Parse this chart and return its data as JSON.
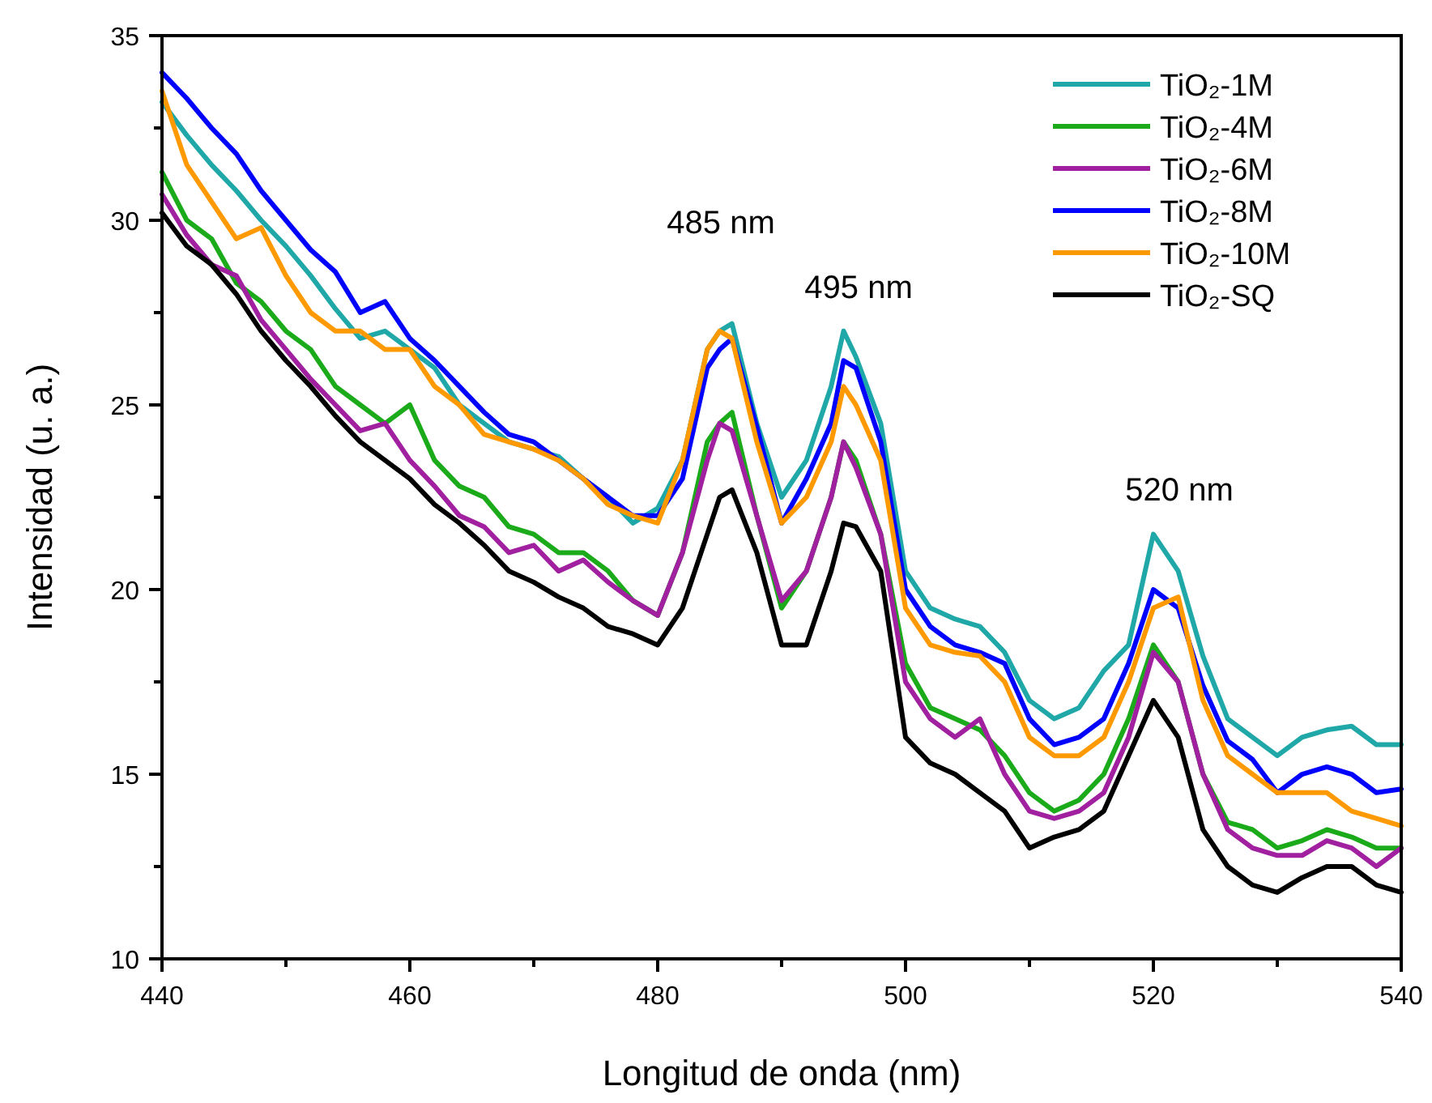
{
  "chart_data": {
    "type": "line",
    "xlabel": "Longitud de onda (nm)",
    "ylabel": "Intensidad (u. a.)",
    "x": [
      440,
      442,
      444,
      446,
      448,
      450,
      452,
      454,
      456,
      458,
      460,
      462,
      464,
      466,
      468,
      470,
      472,
      474,
      476,
      478,
      480,
      482,
      484,
      485,
      486,
      488,
      490,
      492,
      494,
      495,
      496,
      498,
      500,
      502,
      504,
      506,
      508,
      510,
      512,
      514,
      516,
      518,
      520,
      522,
      524,
      526,
      528,
      530,
      532,
      534,
      536,
      538,
      540
    ],
    "xlim": [
      440,
      540
    ],
    "ylim": [
      10,
      35
    ],
    "xticks": [
      440,
      {
        "value": 450,
        "label": null
      },
      460,
      {
        "value": 470,
        "label": null
      },
      480,
      {
        "value": 490,
        "label": null
      },
      500,
      {
        "value": 510,
        "label": null
      },
      520,
      {
        "value": 530,
        "label": null
      },
      540
    ],
    "yticks": [
      10,
      {
        "value": 12.5,
        "label": null
      },
      15,
      {
        "value": 17.5,
        "label": null
      },
      20,
      {
        "value": 22.5,
        "label": null
      },
      25,
      {
        "value": 27.5,
        "label": null
      },
      30,
      {
        "value": 32.5,
        "label": null
      },
      35
    ],
    "grid": false,
    "legend": "top right",
    "marker": "none",
    "line_style": "solid",
    "annotations": [
      "485 nm",
      "495 nm",
      "520 nm"
    ],
    "series": [
      {
        "name": "TiO₂-1M",
        "color": "#20a8a8",
        "values": [
          33.2,
          32.3,
          31.5,
          30.8,
          30.0,
          29.3,
          28.5,
          27.6,
          26.8,
          27.0,
          26.5,
          26.0,
          25.0,
          24.5,
          24.0,
          23.8,
          23.6,
          23.0,
          22.5,
          21.8,
          22.2,
          23.5,
          26.5,
          27.0,
          27.2,
          24.5,
          22.5,
          23.5,
          25.5,
          27.0,
          26.3,
          24.5,
          20.5,
          19.5,
          19.2,
          19.0,
          18.3,
          17.0,
          16.5,
          16.8,
          17.8,
          18.5,
          21.5,
          20.5,
          18.2,
          16.5,
          16.0,
          15.5,
          16.0,
          16.2,
          16.3,
          15.8,
          15.8
        ]
      },
      {
        "name": "TiO₂-4M",
        "color": "#1aaa1a",
        "values": [
          31.3,
          30.0,
          29.5,
          28.3,
          27.8,
          27.0,
          26.5,
          25.5,
          25.0,
          24.5,
          25.0,
          23.5,
          22.8,
          22.5,
          21.7,
          21.5,
          21.0,
          21.0,
          20.5,
          19.7,
          19.3,
          21.0,
          24.0,
          24.5,
          24.8,
          22.0,
          19.5,
          20.5,
          22.5,
          24.0,
          23.5,
          21.5,
          18.0,
          16.8,
          16.5,
          16.2,
          15.5,
          14.5,
          14.0,
          14.3,
          15.0,
          16.5,
          18.5,
          17.5,
          15.0,
          13.7,
          13.5,
          13.0,
          13.2,
          13.5,
          13.3,
          13.0,
          13.0
        ]
      },
      {
        "name": "TiO₂-6M",
        "color": "#a020a0",
        "values": [
          30.7,
          29.6,
          28.8,
          28.5,
          27.3,
          26.5,
          25.7,
          25.0,
          24.3,
          24.5,
          23.5,
          22.8,
          22.0,
          21.7,
          21.0,
          21.2,
          20.5,
          20.8,
          20.2,
          19.7,
          19.3,
          21.0,
          23.5,
          24.5,
          24.3,
          22.0,
          19.7,
          20.5,
          22.5,
          24.0,
          23.3,
          21.5,
          17.5,
          16.5,
          16.0,
          16.5,
          15.0,
          14.0,
          13.8,
          14.0,
          14.5,
          16.0,
          18.3,
          17.5,
          15.0,
          13.5,
          13.0,
          12.8,
          12.8,
          13.2,
          13.0,
          12.5,
          13.0
        ]
      },
      {
        "name": "TiO₂-8M",
        "color": "#0000ff",
        "values": [
          34.0,
          33.3,
          32.5,
          31.8,
          30.8,
          30.0,
          29.2,
          28.6,
          27.5,
          27.8,
          26.8,
          26.2,
          25.5,
          24.8,
          24.2,
          24.0,
          23.5,
          23.0,
          22.5,
          22.0,
          22.0,
          23.0,
          26.0,
          26.5,
          26.8,
          24.4,
          21.8,
          23.0,
          24.5,
          26.2,
          26.0,
          24.0,
          20.0,
          19.0,
          18.5,
          18.3,
          18.0,
          16.5,
          15.8,
          16.0,
          16.5,
          18.0,
          20.0,
          19.5,
          17.4,
          15.9,
          15.4,
          14.5,
          15.0,
          15.2,
          15.0,
          14.5,
          14.6
        ]
      },
      {
        "name": "TiO₂-10M",
        "color": "#ff9900",
        "values": [
          33.5,
          31.5,
          30.5,
          29.5,
          29.8,
          28.5,
          27.5,
          27.0,
          27.0,
          26.5,
          26.5,
          25.5,
          25.0,
          24.2,
          24.0,
          23.8,
          23.5,
          23.0,
          22.3,
          22.0,
          21.8,
          23.5,
          26.5,
          27.0,
          26.8,
          24.0,
          21.8,
          22.5,
          24.0,
          25.5,
          25.0,
          23.5,
          19.5,
          18.5,
          18.3,
          18.2,
          17.5,
          16.0,
          15.5,
          15.5,
          16.0,
          17.5,
          19.5,
          19.8,
          17.0,
          15.5,
          15.0,
          14.5,
          14.5,
          14.5,
          14.0,
          13.8,
          13.6
        ]
      },
      {
        "name": "TiO₂-SQ",
        "color": "#000000",
        "values": [
          30.2,
          29.3,
          28.8,
          28.0,
          27.0,
          26.2,
          25.5,
          24.7,
          24.0,
          23.5,
          23.0,
          22.3,
          21.8,
          21.2,
          20.5,
          20.2,
          19.8,
          19.5,
          19.0,
          18.8,
          18.5,
          19.5,
          21.5,
          22.5,
          22.7,
          21.0,
          18.5,
          18.5,
          20.5,
          21.8,
          21.7,
          20.5,
          16.0,
          15.3,
          15.0,
          14.5,
          14.0,
          13.0,
          13.3,
          13.5,
          14.0,
          15.5,
          17.0,
          16.0,
          13.5,
          12.5,
          12.0,
          11.8,
          12.2,
          12.5,
          12.5,
          12.0,
          11.8
        ]
      }
    ]
  }
}
